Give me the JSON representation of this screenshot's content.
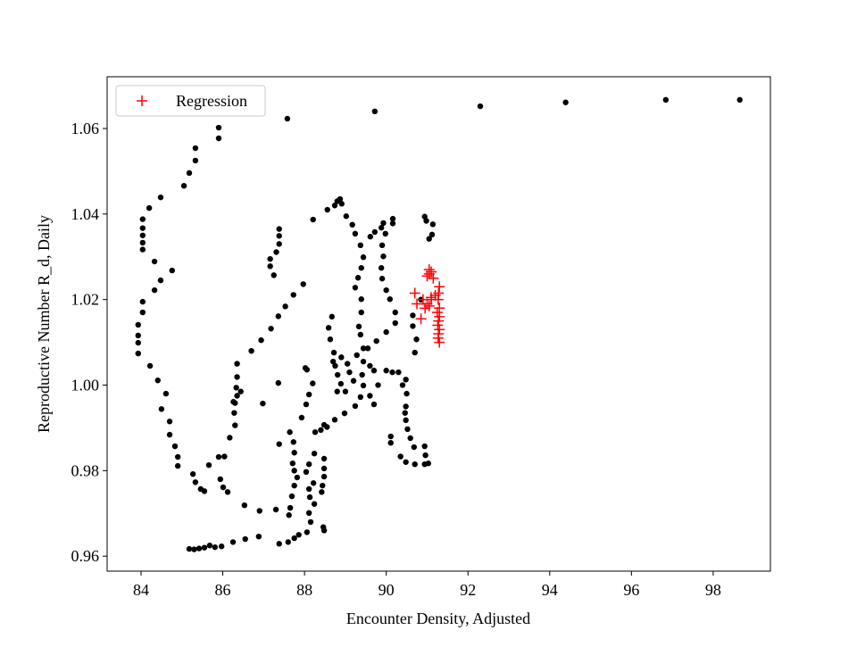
{
  "chart_data": {
    "type": "scatter",
    "xlabel": "Encounter Density, Adjusted",
    "ylabel": "Reproductive Number R_d, Daily",
    "xlim": [
      83.17,
      99.4
    ],
    "ylim": [
      0.9565,
      1.0721
    ],
    "xticks": [
      84,
      86,
      88,
      90,
      92,
      94,
      96,
      98
    ],
    "yticks": [
      0.96,
      0.98,
      {
        "value": 1,
        "label": "1.00"
      },
      1.02,
      1.04,
      1.06
    ],
    "legend": "upper left",
    "series": [
      {
        "color": "#000000",
        "marker": "o",
        "x": [
          87.58,
          89.72,
          92.3,
          94.39,
          96.84,
          98.65,
          85.9,
          85.9,
          85.33,
          85.33,
          85.18,
          85.05,
          84.48,
          84.2,
          84.04,
          84.04,
          84.04,
          84.04,
          84.04,
          84.33,
          84.76,
          84.48,
          84.33,
          84.04,
          84.04,
          83.93,
          83.93,
          83.93,
          83.93,
          84.22,
          84.41,
          84.61,
          84.5,
          84.7,
          84.7,
          84.83,
          84.9,
          84.9,
          85.27,
          85.33,
          85.46,
          85.55,
          85.66,
          85.9,
          85.94,
          86.01,
          86.12,
          86.53,
          86.9,
          87.3,
          87.62,
          85.18,
          85.3,
          85.42,
          85.55,
          85.68,
          85.81,
          85.97,
          86.25,
          86.55,
          86.88,
          87.38,
          87.6,
          87.75,
          87.86,
          88.06,
          88.48,
          88.46,
          87.65,
          87.69,
          87.75,
          87.82,
          87.75,
          87.71,
          87.75,
          87.73,
          87.64,
          87.38,
          88.15,
          88.11,
          88.24,
          88.13,
          88.11,
          88.22,
          88.04,
          88.11,
          88.24,
          88.48,
          88.48,
          88.48,
          88.44,
          88.42,
          87.31,
          87.16,
          87.16,
          87.25,
          87.38,
          87.38,
          87.38,
          86.04,
          86.17,
          86.3,
          86.28,
          86.3,
          86.33,
          86.35,
          86.35,
          86.44,
          86.35,
          86.26,
          86.7,
          86.94,
          87.18,
          87.36,
          87.53,
          87.73,
          87.97,
          87.36,
          86.98,
          88.21,
          88.56,
          88.74,
          88.87,
          88.8,
          88.91,
          89.02,
          89.17,
          89.24,
          89.37,
          89.44,
          89.39,
          89.31,
          89.24,
          89.39,
          89.39,
          89.33,
          89.37,
          89.44,
          89.44,
          89.41,
          89.44,
          89.37,
          89.24,
          88.98,
          88.74,
          88.48,
          88.26,
          88.4,
          88.55,
          88.67,
          88.59,
          88.63,
          88.72,
          88.7,
          88.81,
          88.89,
          88.2,
          88.11,
          88.04,
          87.93,
          88.02,
          88.06,
          89.61,
          89.72,
          89.88,
          89.93,
          90.16,
          90.16,
          89.98,
          89.9,
          89.93,
          89.88,
          89.9,
          90.0,
          90.09,
          90.22,
          90.22,
          90.0,
          89.76,
          89.55,
          89.28,
          89.7,
          90.0,
          90.15,
          90.48,
          90.5,
          90.48,
          90.46,
          90.48,
          90.52,
          90.59,
          90.68,
          90.11,
          90.11,
          90.35,
          90.48,
          90.7,
          90.94,
          90.96,
          90.94,
          91.03,
          90.94,
          90.98,
          91.14,
          91.12,
          91.05,
          90.7,
          90.74,
          90.65,
          90.65,
          90.85,
          88.9,
          89.05,
          89.1,
          89.2,
          89.6,
          89.8,
          89.6,
          89.7,
          88.8,
          89.0,
          88.75,
          90.3,
          90.4
        ],
        "values": [
          1.0623,
          1.064,
          1.0652,
          1.0661,
          1.0667,
          1.0667,
          1.0602,
          1.0577,
          1.0554,
          1.0525,
          1.0496,
          1.0466,
          1.0439,
          1.0414,
          1.0388,
          1.0367,
          1.035,
          1.0333,
          1.0317,
          1.0289,
          1.0268,
          1.0245,
          1.0222,
          1.0195,
          1.017,
          1.0141,
          1.0116,
          1.0099,
          1.0074,
          1.0045,
          1.0011,
          0.998,
          0.9944,
          0.9915,
          0.9884,
          0.9857,
          0.9832,
          0.9811,
          0.9792,
          0.9773,
          0.9757,
          0.9752,
          0.9813,
          0.9832,
          0.978,
          0.9761,
          0.975,
          0.9719,
          0.9706,
          0.9709,
          0.9696,
          0.9617,
          0.9616,
          0.9618,
          0.962,
          0.9625,
          0.9621,
          0.9623,
          0.9633,
          0.964,
          0.9646,
          0.9629,
          0.9633,
          0.9642,
          0.965,
          0.9656,
          0.966,
          0.9668,
          0.9713,
          0.974,
          0.9765,
          0.9784,
          0.98,
          0.9817,
          0.9842,
          0.9867,
          0.989,
          0.9862,
          0.968,
          0.9701,
          0.9722,
          0.9738,
          0.9757,
          0.9771,
          0.9797,
          0.9815,
          0.984,
          0.9828,
          0.9805,
          0.9786,
          0.9765,
          0.975,
          1.0311,
          1.0295,
          1.0278,
          1.0257,
          1.0365,
          1.0349,
          1.033,
          0.9833,
          0.9877,
          0.9906,
          0.9935,
          0.9958,
          0.9994,
          1.0019,
          1.005,
          0.9985,
          0.9975,
          0.9961,
          1.008,
          1.0105,
          1.0132,
          1.0161,
          1.0184,
          1.0211,
          1.0236,
          1.0005,
          0.9957,
          1.0387,
          1.041,
          1.042,
          1.0435,
          1.043,
          1.0424,
          1.0395,
          1.0375,
          1.0354,
          1.0327,
          1.0299,
          1.0274,
          1.0251,
          1.0228,
          1.0201,
          1.017,
          1.0137,
          1.0118,
          1.0086,
          1.0055,
          1.0024,
          0.9999,
          0.9972,
          0.9951,
          0.9934,
          0.9919,
          0.9907,
          0.989,
          0.9895,
          0.9902,
          1.016,
          1.0134,
          1.0107,
          1.0076,
          1.0055,
          1.0024,
          1.0003,
          1.0004,
          0.9978,
          0.9955,
          0.9924,
          1.004,
          1.0036,
          1.0347,
          1.0358,
          1.0368,
          1.0379,
          1.0389,
          1.0378,
          1.0354,
          1.0327,
          1.0301,
          1.0274,
          1.0249,
          1.0222,
          1.0201,
          1.017,
          1.0145,
          1.0124,
          1.0103,
          1.0086,
          1.007,
          1.0034,
          1.0034,
          1.003,
          1.0013,
          0.998,
          0.995,
          0.9935,
          0.9918,
          0.9897,
          0.9876,
          0.9855,
          0.9865,
          0.988,
          0.9833,
          0.982,
          0.9815,
          0.9815,
          0.9836,
          0.9857,
          0.9817,
          1.0394,
          1.0384,
          1.0376,
          1.0352,
          1.0342,
          1.0076,
          1.0107,
          1.0138,
          1.0163,
          1.02,
          1.0065,
          1.005,
          1.003,
          1.001,
          1.0045,
          1.0,
          0.9975,
          0.9955,
          0.9985,
          0.9985,
          1.0045,
          1.003,
          1.0
        ]
      },
      {
        "name": "Regression",
        "color": "#ff0000",
        "marker": "+",
        "x": [
          91.05,
          91.1,
          91.0,
          91.15,
          91.2,
          91.1,
          91.0,
          90.9,
          90.7,
          90.75,
          90.85,
          90.95,
          91.05,
          91.1,
          91.3,
          91.28,
          91.27,
          91.3,
          91.25,
          91.3,
          91.28,
          91.26,
          91.3,
          91.28,
          91.27,
          91.3,
          91.05
        ],
        "values": [
          1.026,
          1.0265,
          1.0255,
          1.025,
          1.021,
          1.02,
          1.019,
          1.02,
          1.0215,
          1.019,
          1.0155,
          1.018,
          1.0185,
          1.0205,
          1.023,
          1.0215,
          1.02,
          1.018,
          1.017,
          1.016,
          1.015,
          1.014,
          1.013,
          1.012,
          1.011,
          1.01,
          1.027
        ]
      }
    ]
  }
}
